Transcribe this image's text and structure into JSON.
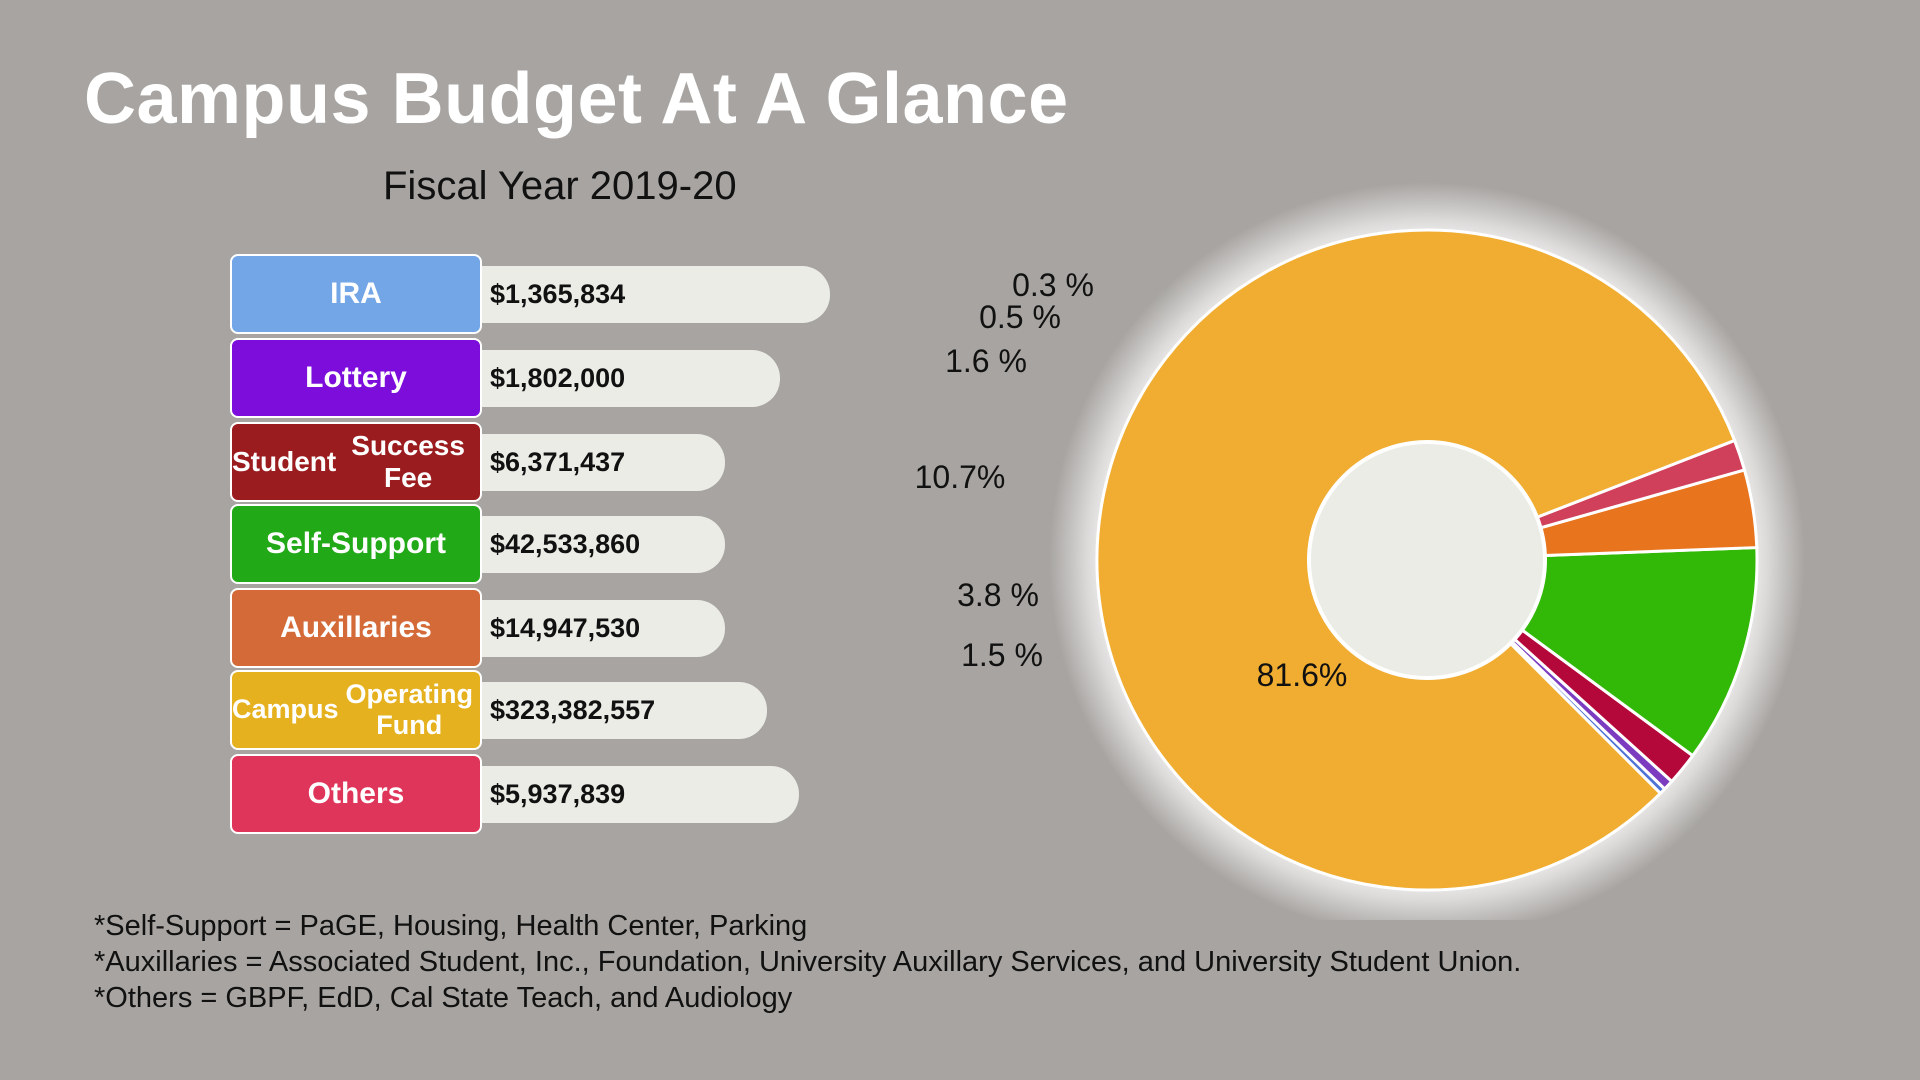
{
  "title": "Campus Budget At A Glance",
  "subtitle": "Fiscal Year 2019-20",
  "legend": [
    {
      "label_lines": [
        "IRA"
      ],
      "amount": "$1,365,834",
      "color": "#72a6e6"
    },
    {
      "label_lines": [
        "Lottery"
      ],
      "amount": "$1,802,000",
      "color": "#7c0ddb"
    },
    {
      "label_lines": [
        "Student",
        "Success Fee"
      ],
      "amount": "$6,371,437",
      "color": "#9b1c1f"
    },
    {
      "label_lines": [
        "Self-Support"
      ],
      "amount": "$42,533,860",
      "color": "#22a918"
    },
    {
      "label_lines": [
        "Auxillaries"
      ],
      "amount": "$14,947,530",
      "color": "#d46a38"
    },
    {
      "label_lines": [
        "Campus",
        "Operating Fund"
      ],
      "amount": "$323,382,557",
      "color": "#e6b11f"
    },
    {
      "label_lines": [
        "Others"
      ],
      "amount": "$5,937,839",
      "color": "#e0355a"
    }
  ],
  "chart_data": {
    "type": "pie",
    "style": "donut",
    "categories": [
      "IRA",
      "Lottery",
      "Student Success Fee",
      "Self-Support",
      "Auxillaries",
      "Others",
      "Campus Operating Fund"
    ],
    "values": [
      0.3,
      0.5,
      1.6,
      10.7,
      3.8,
      1.5,
      81.6
    ],
    "labels": [
      "0.3 %",
      "0.5 %",
      "1.6 %",
      "10.7%",
      "3.8 %",
      "1.5 %",
      "81.6%"
    ],
    "colors": [
      "#4f74d6",
      "#7c3cc0",
      "#b5083a",
      "#32b806",
      "#e8741e",
      "#d0405a",
      "#f0ad31"
    ],
    "unit": "%",
    "start_angle_deg": 315,
    "direction": "counterclockwise"
  },
  "footnotes": [
    "*Self-Support = PaGE, Housing, Health Center, Parking",
    "*Auxillaries = Associated Student, Inc., Foundation, University Auxillary Services, and University Student Union.",
    "*Others = GBPF, EdD, Cal State Teach, and Audiology"
  ]
}
